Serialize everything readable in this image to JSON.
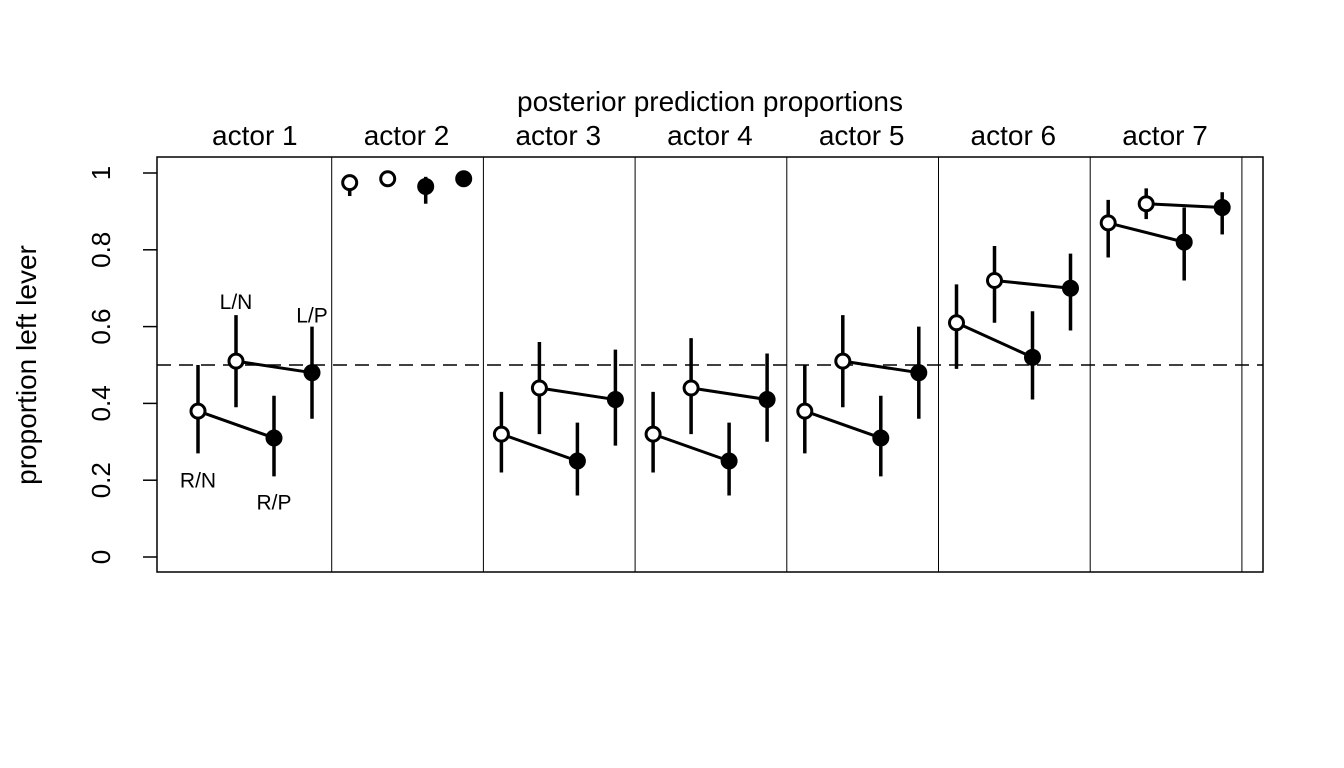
{
  "chart_data": {
    "type": "scatter",
    "title": "posterior prediction proportions",
    "ylabel": "proportion left lever",
    "xlabel": "",
    "ylim": [
      0,
      1
    ],
    "yticks": [
      "0",
      "0.2",
      "0.4",
      "0.6",
      "0.8",
      "1"
    ],
    "reference_line": {
      "y": 0.5,
      "style": "dashed"
    },
    "grid": false,
    "conditions": [
      "R/N",
      "L/N",
      "R/P",
      "L/P"
    ],
    "condition_labels_shown_in": "actor 1",
    "marker_note": "open circles = no partner (R/N, L/N); filled circles = partner (R/P, L/P)",
    "colors": {
      "marks": "#000000",
      "background": "#ffffff"
    },
    "actors": [
      {
        "label": "actor 1",
        "means": [
          0.38,
          0.51,
          0.31,
          0.48
        ],
        "lower": [
          0.27,
          0.39,
          0.21,
          0.36
        ],
        "upper": [
          0.5,
          0.63,
          0.42,
          0.6
        ]
      },
      {
        "label": "actor 2",
        "means": [
          0.975,
          0.985,
          0.965,
          0.985
        ],
        "lower": [
          0.94,
          0.97,
          0.92,
          0.97
        ],
        "upper": [
          0.99,
          0.995,
          0.99,
          0.995
        ]
      },
      {
        "label": "actor 3",
        "means": [
          0.32,
          0.44,
          0.25,
          0.41
        ],
        "lower": [
          0.22,
          0.32,
          0.16,
          0.29
        ],
        "upper": [
          0.43,
          0.56,
          0.35,
          0.54
        ]
      },
      {
        "label": "actor 4",
        "means": [
          0.32,
          0.44,
          0.25,
          0.41
        ],
        "lower": [
          0.22,
          0.32,
          0.16,
          0.3
        ],
        "upper": [
          0.43,
          0.57,
          0.35,
          0.53
        ]
      },
      {
        "label": "actor 5",
        "means": [
          0.38,
          0.51,
          0.31,
          0.48
        ],
        "lower": [
          0.27,
          0.39,
          0.21,
          0.36
        ],
        "upper": [
          0.5,
          0.63,
          0.42,
          0.6
        ]
      },
      {
        "label": "actor 6",
        "means": [
          0.61,
          0.72,
          0.52,
          0.7
        ],
        "lower": [
          0.49,
          0.61,
          0.41,
          0.59
        ],
        "upper": [
          0.71,
          0.81,
          0.64,
          0.79
        ]
      },
      {
        "label": "actor 7",
        "means": [
          0.87,
          0.92,
          0.82,
          0.91
        ],
        "lower": [
          0.78,
          0.88,
          0.72,
          0.84
        ],
        "upper": [
          0.93,
          0.96,
          0.91,
          0.95
        ]
      }
    ]
  }
}
